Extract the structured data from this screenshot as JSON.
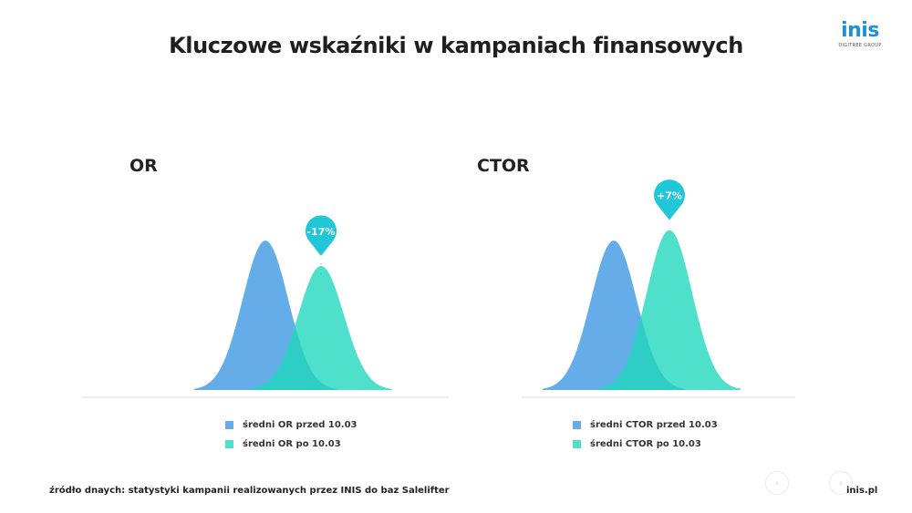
{
  "title": "Kluczowe wskaźniki w kampaniach finansowych",
  "logo": {
    "text": "inis",
    "subtext": "DIGITREE GROUP"
  },
  "colors": {
    "before": "#64ade8",
    "after": "#4fe0cc",
    "overlap": "#2ecdc6",
    "badge": "#21c6d9",
    "axis": "#e8e8e8"
  },
  "chart_data": [
    {
      "type": "area",
      "title": "OR",
      "series": [
        {
          "name": "średni OR przed 10.03",
          "relative_height": 1.0,
          "center_offset": -1
        },
        {
          "name": "średni OR po 10.03",
          "relative_height": 0.83,
          "center_offset": 1
        }
      ],
      "annotation": "-17%",
      "legend_placement": "bottom"
    },
    {
      "type": "area",
      "title": "CTOR",
      "series": [
        {
          "name": "średni CTOR przed 10.03",
          "relative_height": 1.0,
          "center_offset": -1
        },
        {
          "name": "średni CTOR po 10.03",
          "relative_height": 1.07,
          "center_offset": 1
        }
      ],
      "annotation": "+7%",
      "legend_placement": "bottom"
    }
  ],
  "source": "źródło dnaych: statystyki kampanii realizowanych przez INIS do baz Salelifter",
  "footer_link": "inis.pl",
  "nav": {
    "prev_icon": "chevron-left-icon",
    "next_icon": "chevron-right-icon",
    "prev": "‹",
    "next": "›"
  }
}
